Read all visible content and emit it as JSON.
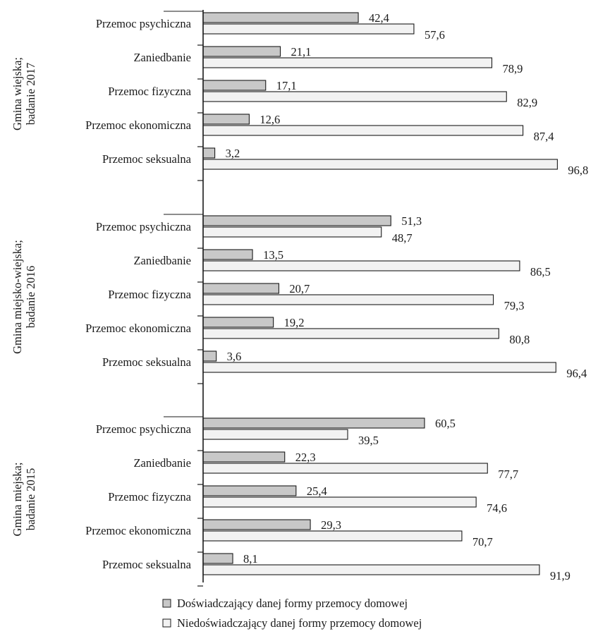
{
  "chart_data": {
    "type": "bar",
    "orientation": "horizontal",
    "groups": [
      {
        "label_lines": [
          "Gmina wiejska;",
          "badanie 2017"
        ],
        "categories": [
          "Przemoc psychiczna",
          "Zaniedbanie",
          "Przemoc fizyczna",
          "Przemoc ekonomiczna",
          "Przemoc seksualna"
        ],
        "experienced": [
          42.4,
          21.1,
          17.1,
          12.6,
          3.2
        ],
        "not_experienced": [
          57.6,
          78.9,
          82.9,
          87.4,
          96.8
        ],
        "experienced_labels": [
          "42,4",
          "21,1",
          "17,1",
          "12,6",
          "3,2"
        ],
        "not_experienced_labels": [
          "57,6",
          "78,9",
          "82,9",
          "87,4",
          "96,8"
        ]
      },
      {
        "label_lines": [
          "Gmina miejsko-wiejska;",
          "badanie 2016"
        ],
        "categories": [
          "Przemoc psychiczna",
          "Zaniedbanie",
          "Przemoc fizyczna",
          "Przemoc ekonomiczna",
          "Przemoc seksualna"
        ],
        "experienced": [
          51.3,
          13.5,
          20.7,
          19.2,
          3.6
        ],
        "not_experienced": [
          48.7,
          86.5,
          79.3,
          80.8,
          96.4
        ],
        "experienced_labels": [
          "51,3",
          "13,5",
          "20,7",
          "19,2",
          "3,6"
        ],
        "not_experienced_labels": [
          "48,7",
          "86,5",
          "79,3",
          "80,8",
          "96,4"
        ]
      },
      {
        "label_lines": [
          "Gmina miejska;",
          "badanie 2015"
        ],
        "categories": [
          "Przemoc psychiczna",
          "Zaniedbanie",
          "Przemoc fizyczna",
          "Przemoc ekonomiczna",
          "Przemoc seksualna"
        ],
        "experienced": [
          60.5,
          22.3,
          25.4,
          29.3,
          8.1
        ],
        "not_experienced": [
          39.5,
          77.7,
          74.6,
          70.7,
          91.9
        ],
        "experienced_labels": [
          "60,5",
          "22,3",
          "25,4",
          "29,3",
          "8,1"
        ],
        "not_experienced_labels": [
          "39,5",
          "77,7",
          "74,6",
          "70,7",
          "91,9"
        ]
      }
    ],
    "series": [
      {
        "name": "Doświadczający danej formy przemocy domowej",
        "color": "#c8c8c8"
      },
      {
        "name": "Niedoświadczający danej formy przemocy domowej",
        "color": "#f2f2f2"
      }
    ],
    "xlim": [
      0,
      100
    ],
    "grid": false,
    "legend_position": "bottom"
  }
}
